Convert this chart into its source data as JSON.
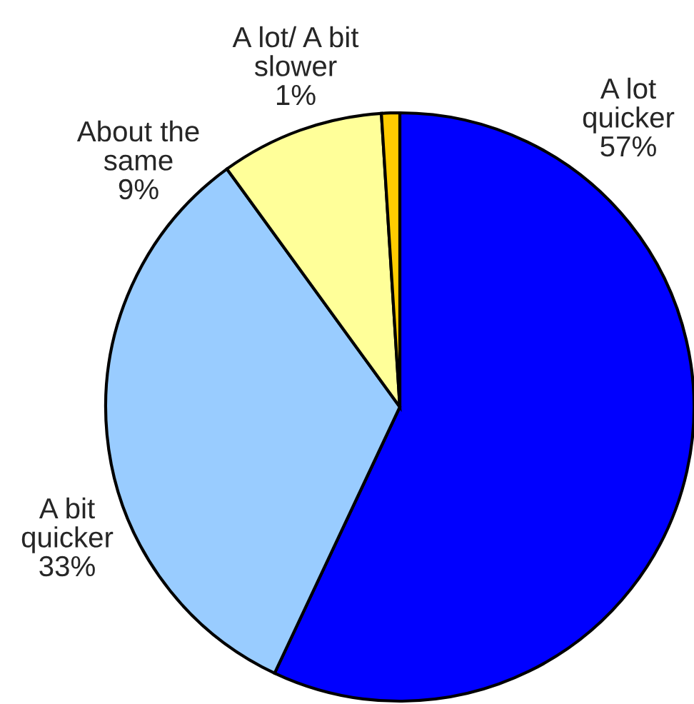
{
  "chart_data": {
    "type": "pie",
    "categories": [
      "A lot\nquicker",
      "A bit\nquicker",
      "About the\nsame",
      "A lot/ A bit\nslower"
    ],
    "values": [
      57,
      33,
      9,
      1
    ],
    "value_labels": [
      "57%",
      "33%",
      "9%",
      "1%"
    ],
    "colors": [
      "#0000ff",
      "#99ccff",
      "#ffff99",
      "#ffcc00"
    ],
    "legend": false
  }
}
